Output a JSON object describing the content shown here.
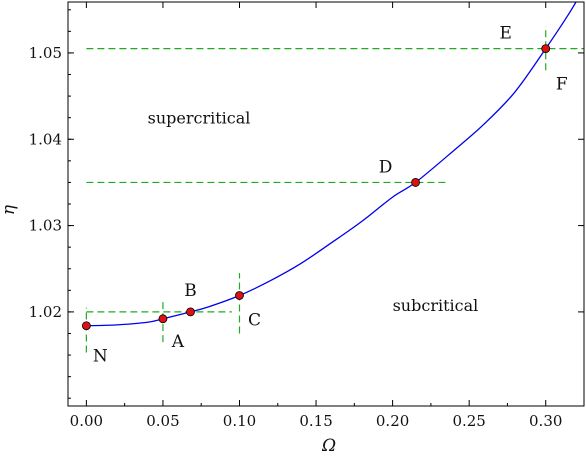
{
  "chart_data": {
    "type": "line",
    "xlabel": "Ω",
    "ylabel": "η",
    "xlim": [
      -0.012,
      0.325
    ],
    "ylim": [
      1.0091,
      1.0559
    ],
    "x_ticks": [
      "0.00",
      "0.05",
      "0.10",
      "0.15",
      "0.20",
      "0.25",
      "0.30"
    ],
    "y_ticks": [
      "1.02",
      "1.03",
      "1.04",
      "1.05"
    ],
    "grid": false,
    "colors": {
      "curve": "#0000ee",
      "points": "#dd1111",
      "guides": "#22aa22"
    },
    "series": [
      {
        "x": [
          0.0,
          0.02,
          0.04,
          0.05,
          0.068,
          0.08,
          0.1,
          0.12,
          0.14,
          0.16,
          0.18,
          0.2,
          0.215,
          0.24,
          0.26,
          0.28,
          0.3,
          0.315,
          0.325
        ],
        "y": [
          1.0184,
          1.0185,
          1.0188,
          1.0192,
          1.02,
          1.0206,
          1.0219,
          1.0236,
          1.0256,
          1.028,
          1.0305,
          1.0333,
          1.035,
          1.0387,
          1.0418,
          1.0455,
          1.0505,
          1.0545,
          1.0575
        ]
      }
    ],
    "points": [
      {
        "label": "N",
        "x": 0.0,
        "y": 1.0184
      },
      {
        "label": "A",
        "x": 0.05,
        "y": 1.0192
      },
      {
        "label": "B",
        "x": 0.068,
        "y": 1.02
      },
      {
        "label": "C",
        "x": 0.1,
        "y": 1.0219
      },
      {
        "label": "D",
        "x": 0.215,
        "y": 1.035
      },
      {
        "label": "E",
        "x": 0.3,
        "y": 1.0505
      },
      {
        "label": "F",
        "x": 0.3,
        "y": 1.0505
      }
    ],
    "guides": [
      {
        "kind": "h",
        "y": 1.0505,
        "x0": 0.0,
        "x1": 0.325
      },
      {
        "kind": "h",
        "y": 1.035,
        "x0": 0.0,
        "x1": 0.235
      },
      {
        "kind": "h",
        "y": 1.02,
        "x0": 0.0,
        "x1": 0.095
      },
      {
        "kind": "v",
        "x": 0.0,
        "y0": 1.0153,
        "y1": 1.0205
      },
      {
        "kind": "v",
        "x": 0.05,
        "y0": 1.0165,
        "y1": 1.0215
      },
      {
        "kind": "v",
        "x": 0.1,
        "y0": 1.0175,
        "y1": 1.0245
      },
      {
        "kind": "v",
        "x": 0.3,
        "y0": 1.048,
        "y1": 1.0531
      }
    ],
    "regions": [
      {
        "label": "supercritical",
        "x": 0.04,
        "y": 1.0418
      },
      {
        "label": "subcritical",
        "x": 0.2,
        "y": 1.0201
      }
    ]
  }
}
